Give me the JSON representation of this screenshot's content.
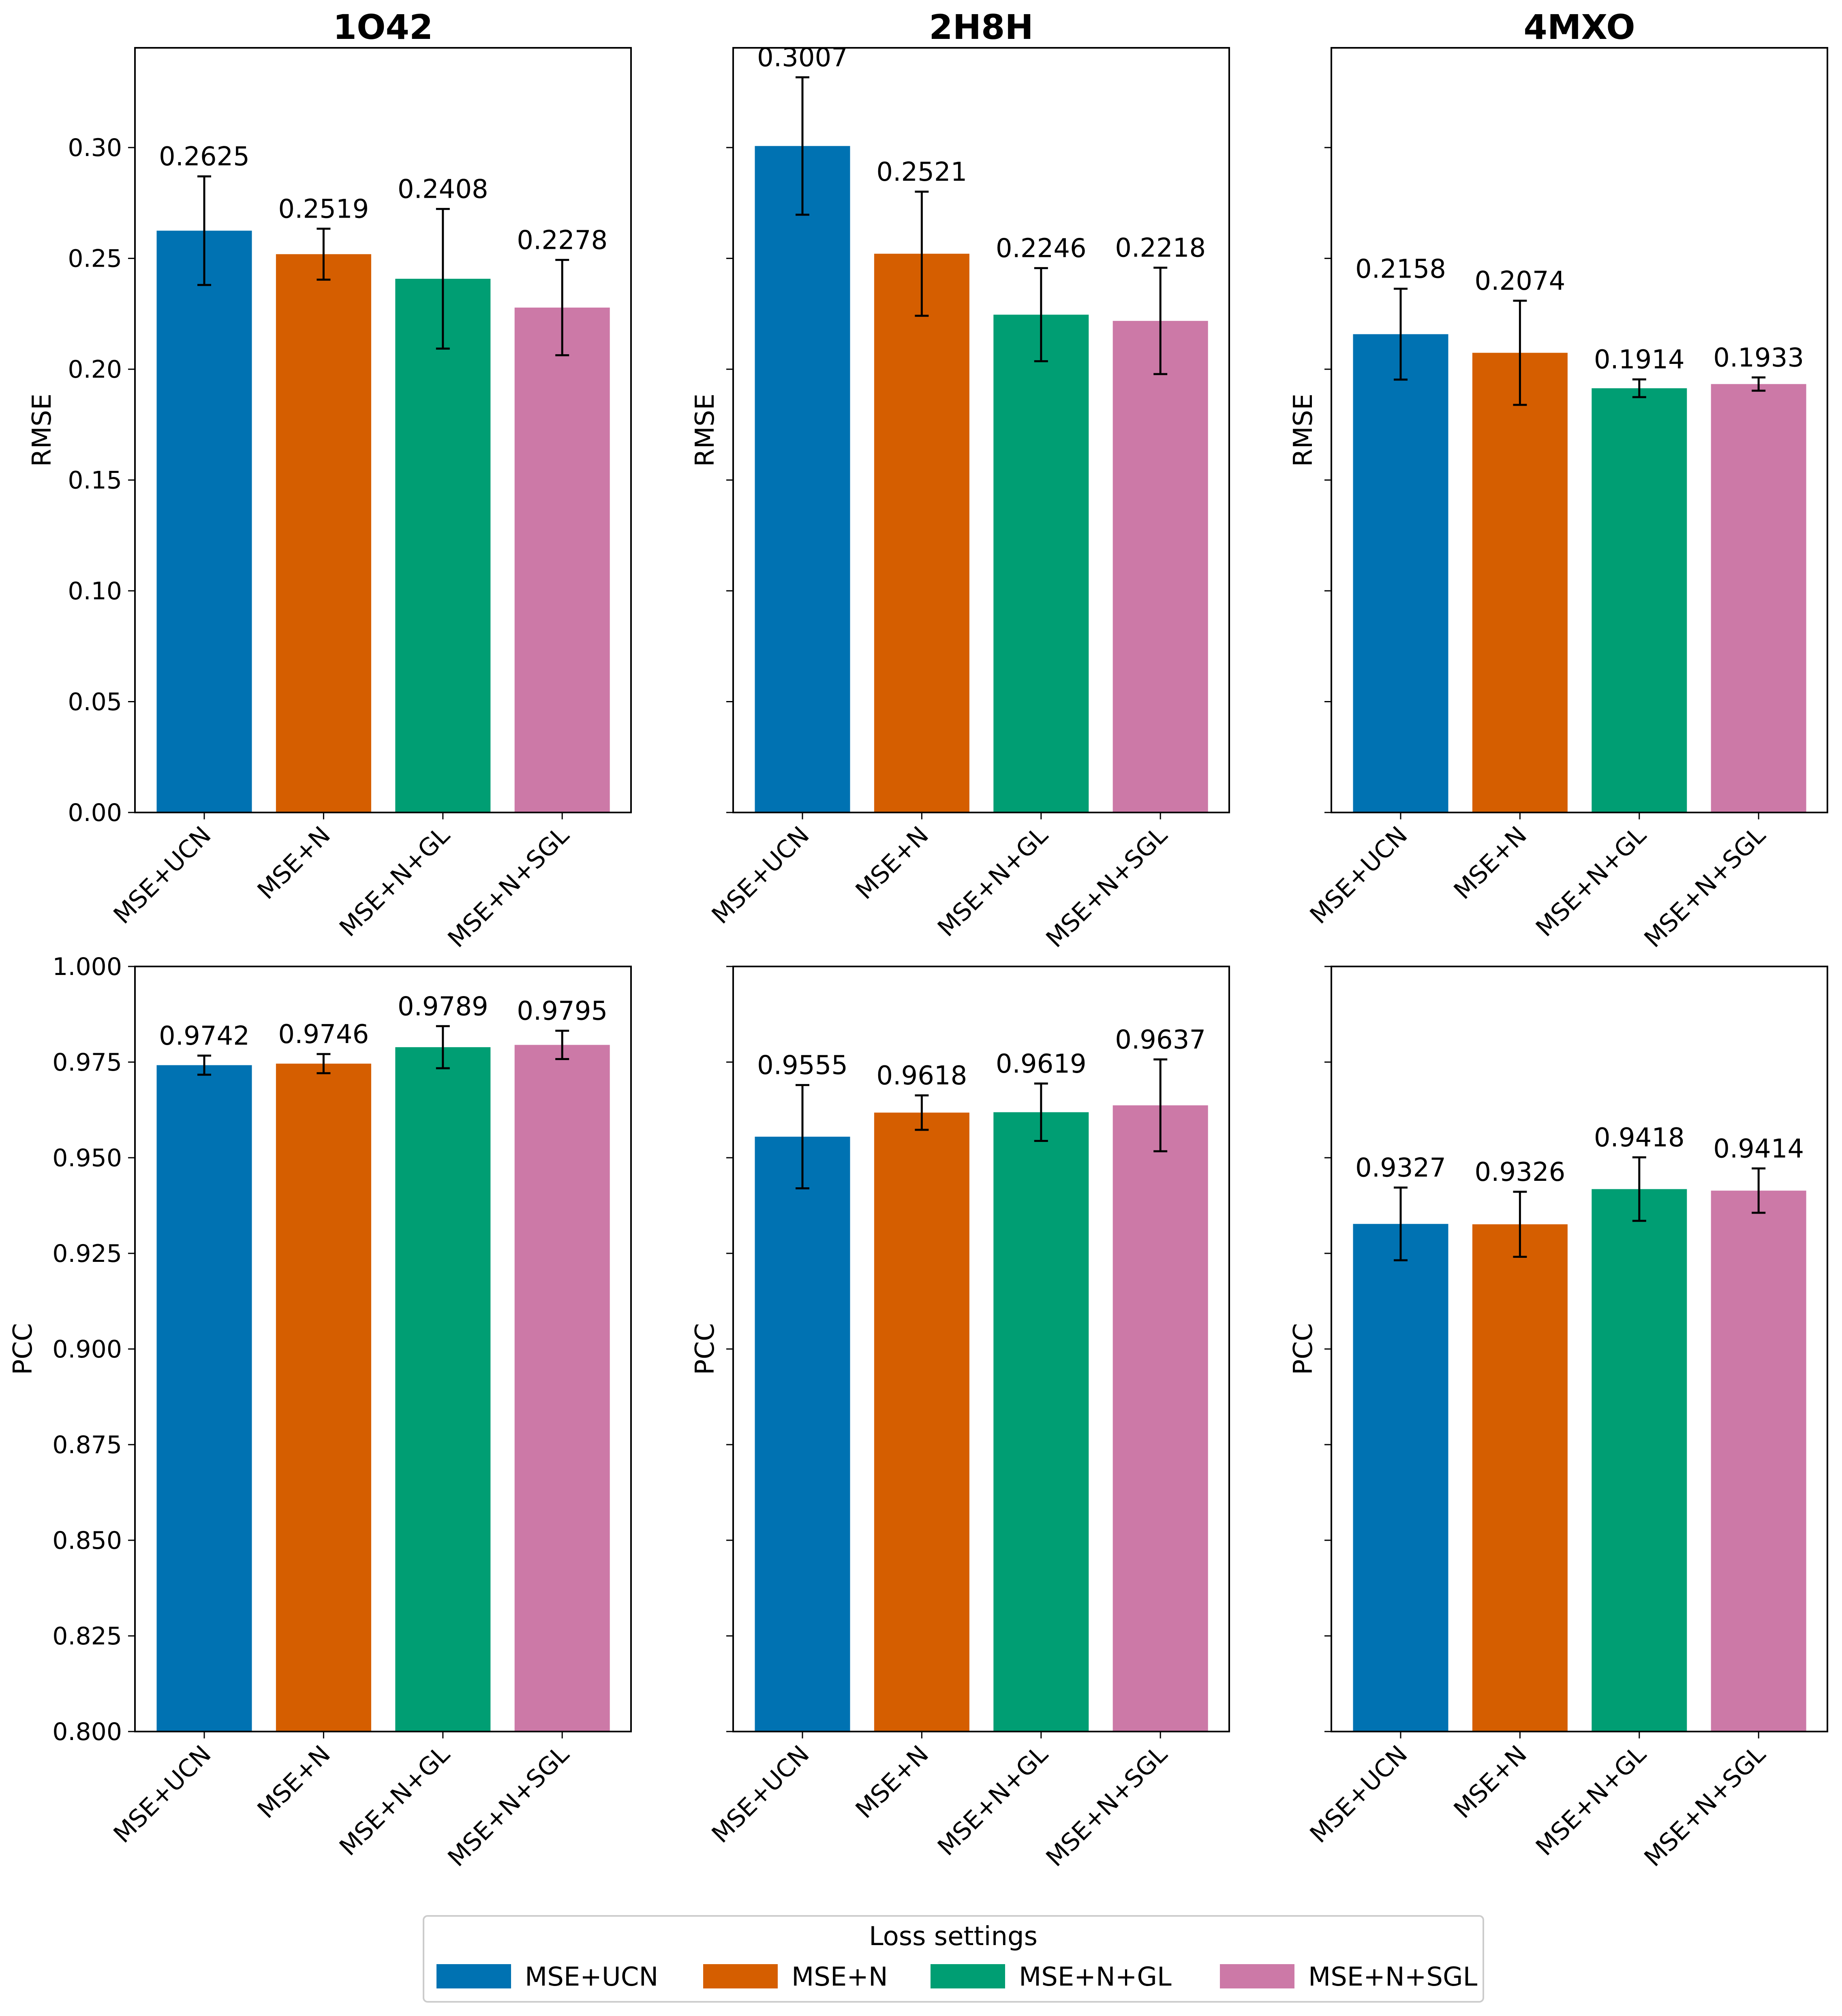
{
  "chart_data": [
    {
      "type": "bar",
      "title": "1O42",
      "xlabel": "",
      "ylabel": "RMSE",
      "ylim": [
        0,
        0.345
      ],
      "yticks": [
        "0.00",
        "0.05",
        "0.10",
        "0.15",
        "0.20",
        "0.25",
        "0.30"
      ],
      "categories": [
        "MSE+UCN",
        "MSE+N",
        "MSE+N+GL",
        "MSE+N+SGL"
      ],
      "values": [
        0.2625,
        0.2519,
        0.2408,
        0.2278
      ],
      "errors": [
        0.0245,
        0.0115,
        0.0315,
        0.0215
      ],
      "labels": [
        "0.2625",
        "0.2519",
        "0.2408",
        "0.2278"
      ]
    },
    {
      "type": "bar",
      "title": "2H8H",
      "xlabel": "",
      "ylabel": "RMSE",
      "ylim": [
        0,
        0.345
      ],
      "yticks": [
        "",
        "",
        "",
        "",
        "",
        "",
        ""
      ],
      "categories": [
        "MSE+UCN",
        "MSE+N",
        "MSE+N+GL",
        "MSE+N+SGL"
      ],
      "values": [
        0.3007,
        0.2521,
        0.2246,
        0.2218
      ],
      "errors": [
        0.031,
        0.028,
        0.021,
        0.024
      ],
      "labels": [
        "0.3007",
        "0.2521",
        "0.2246",
        "0.2218"
      ]
    },
    {
      "type": "bar",
      "title": "4MXO",
      "xlabel": "",
      "ylabel": "RMSE",
      "ylim": [
        0,
        0.345
      ],
      "yticks": [
        "",
        "",
        "",
        "",
        "",
        "",
        ""
      ],
      "categories": [
        "MSE+UCN",
        "MSE+N",
        "MSE+N+GL",
        "MSE+N+SGL"
      ],
      "values": [
        0.2158,
        0.2074,
        0.1914,
        0.1933
      ],
      "errors": [
        0.0205,
        0.0235,
        0.004,
        0.003
      ],
      "labels": [
        "0.2158",
        "0.2074",
        "0.1914",
        "0.1933"
      ]
    },
    {
      "type": "bar",
      "title": "",
      "xlabel": "",
      "ylabel": "PCC",
      "ylim": [
        0.8,
        1.0
      ],
      "yticks": [
        "0.800",
        "0.825",
        "0.850",
        "0.875",
        "0.900",
        "0.925",
        "0.950",
        "0.975",
        "1.000"
      ],
      "categories": [
        "MSE+UCN",
        "MSE+N",
        "MSE+N+GL",
        "MSE+N+SGL"
      ],
      "values": [
        0.9742,
        0.9746,
        0.9789,
        0.9795
      ],
      "errors": [
        0.0025,
        0.0025,
        0.0055,
        0.0037
      ],
      "labels": [
        "0.9742",
        "0.9746",
        "0.9789",
        "0.9795"
      ]
    },
    {
      "type": "bar",
      "title": "",
      "xlabel": "",
      "ylabel": "PCC",
      "ylim": [
        0.8,
        1.0
      ],
      "yticks": [
        "",
        "",
        "",
        "",
        "",
        "",
        "",
        "",
        ""
      ],
      "categories": [
        "MSE+UCN",
        "MSE+N",
        "MSE+N+GL",
        "MSE+N+SGL"
      ],
      "values": [
        0.9555,
        0.9618,
        0.9619,
        0.9637
      ],
      "errors": [
        0.0135,
        0.0045,
        0.0075,
        0.012
      ],
      "labels": [
        "0.9555",
        "0.9618",
        "0.9619",
        "0.9637"
      ]
    },
    {
      "type": "bar",
      "title": "",
      "xlabel": "",
      "ylabel": "PCC",
      "ylim": [
        0.8,
        1.0
      ],
      "yticks": [
        "",
        "",
        "",
        "",
        "",
        "",
        "",
        "",
        ""
      ],
      "categories": [
        "MSE+UCN",
        "MSE+N",
        "MSE+N+GL",
        "MSE+N+SGL"
      ],
      "values": [
        0.9327,
        0.9326,
        0.9418,
        0.9414
      ],
      "errors": [
        0.0095,
        0.0085,
        0.0083,
        0.0058
      ],
      "labels": [
        "0.9327",
        "0.9326",
        "0.9418",
        "0.9414"
      ]
    }
  ],
  "legend": {
    "title": "Loss settings",
    "placement": "bottom-center",
    "items": [
      {
        "label": "MSE+UCN",
        "color": "#0072b2"
      },
      {
        "label": "MSE+N",
        "color": "#d55e00"
      },
      {
        "label": "MSE+N+GL",
        "color": "#009e73"
      },
      {
        "label": "MSE+N+SGL",
        "color": "#cc79a7"
      }
    ]
  },
  "colors": {
    "series": [
      "#0072b2",
      "#d55e00",
      "#009e73",
      "#cc79a7"
    ],
    "axis": "#000000",
    "errorbar": "#000000"
  }
}
